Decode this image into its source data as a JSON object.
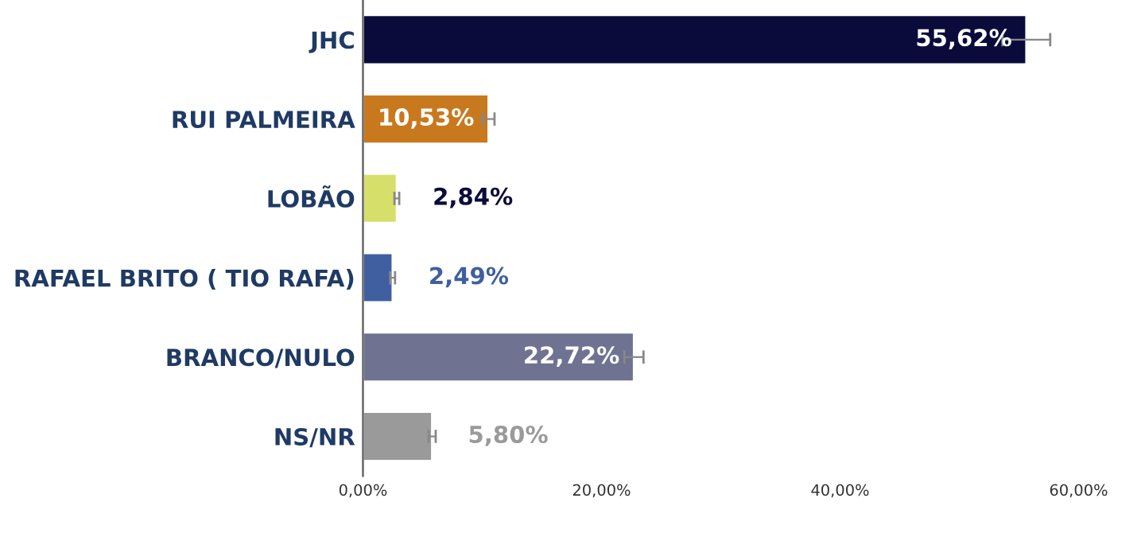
{
  "chart_data": {
    "type": "bar",
    "orientation": "horizontal",
    "categories": [
      "JHC",
      "RUI PALMEIRA",
      "LOBÃO",
      "RAFAEL BRITO ( TIO RAFA)",
      "BRANCO/NULO",
      "NS/NR"
    ],
    "values": [
      55.62,
      10.53,
      2.84,
      2.49,
      22.72,
      5.8
    ],
    "value_labels": [
      "55,62%",
      "10,53%",
      "2,84%",
      "2,49%",
      "22,72%",
      "5,80%"
    ],
    "errors": [
      2,
      0.5,
      0.2,
      0.2,
      0.8,
      0.3
    ],
    "colors": [
      "#0b0b3b",
      "#c8791e",
      "#d6df6a",
      "#3f5fa0",
      "#6f7391",
      "#9a9a9a"
    ],
    "xlim": [
      0,
      60
    ],
    "xticks": [
      {
        "value": 0,
        "label": "0,00%"
      },
      {
        "value": 20,
        "label": "20,00%"
      },
      {
        "value": 40,
        "label": "40,00%"
      },
      {
        "value": 60,
        "label": "60,00%"
      }
    ],
    "grid": false,
    "legend": false
  }
}
